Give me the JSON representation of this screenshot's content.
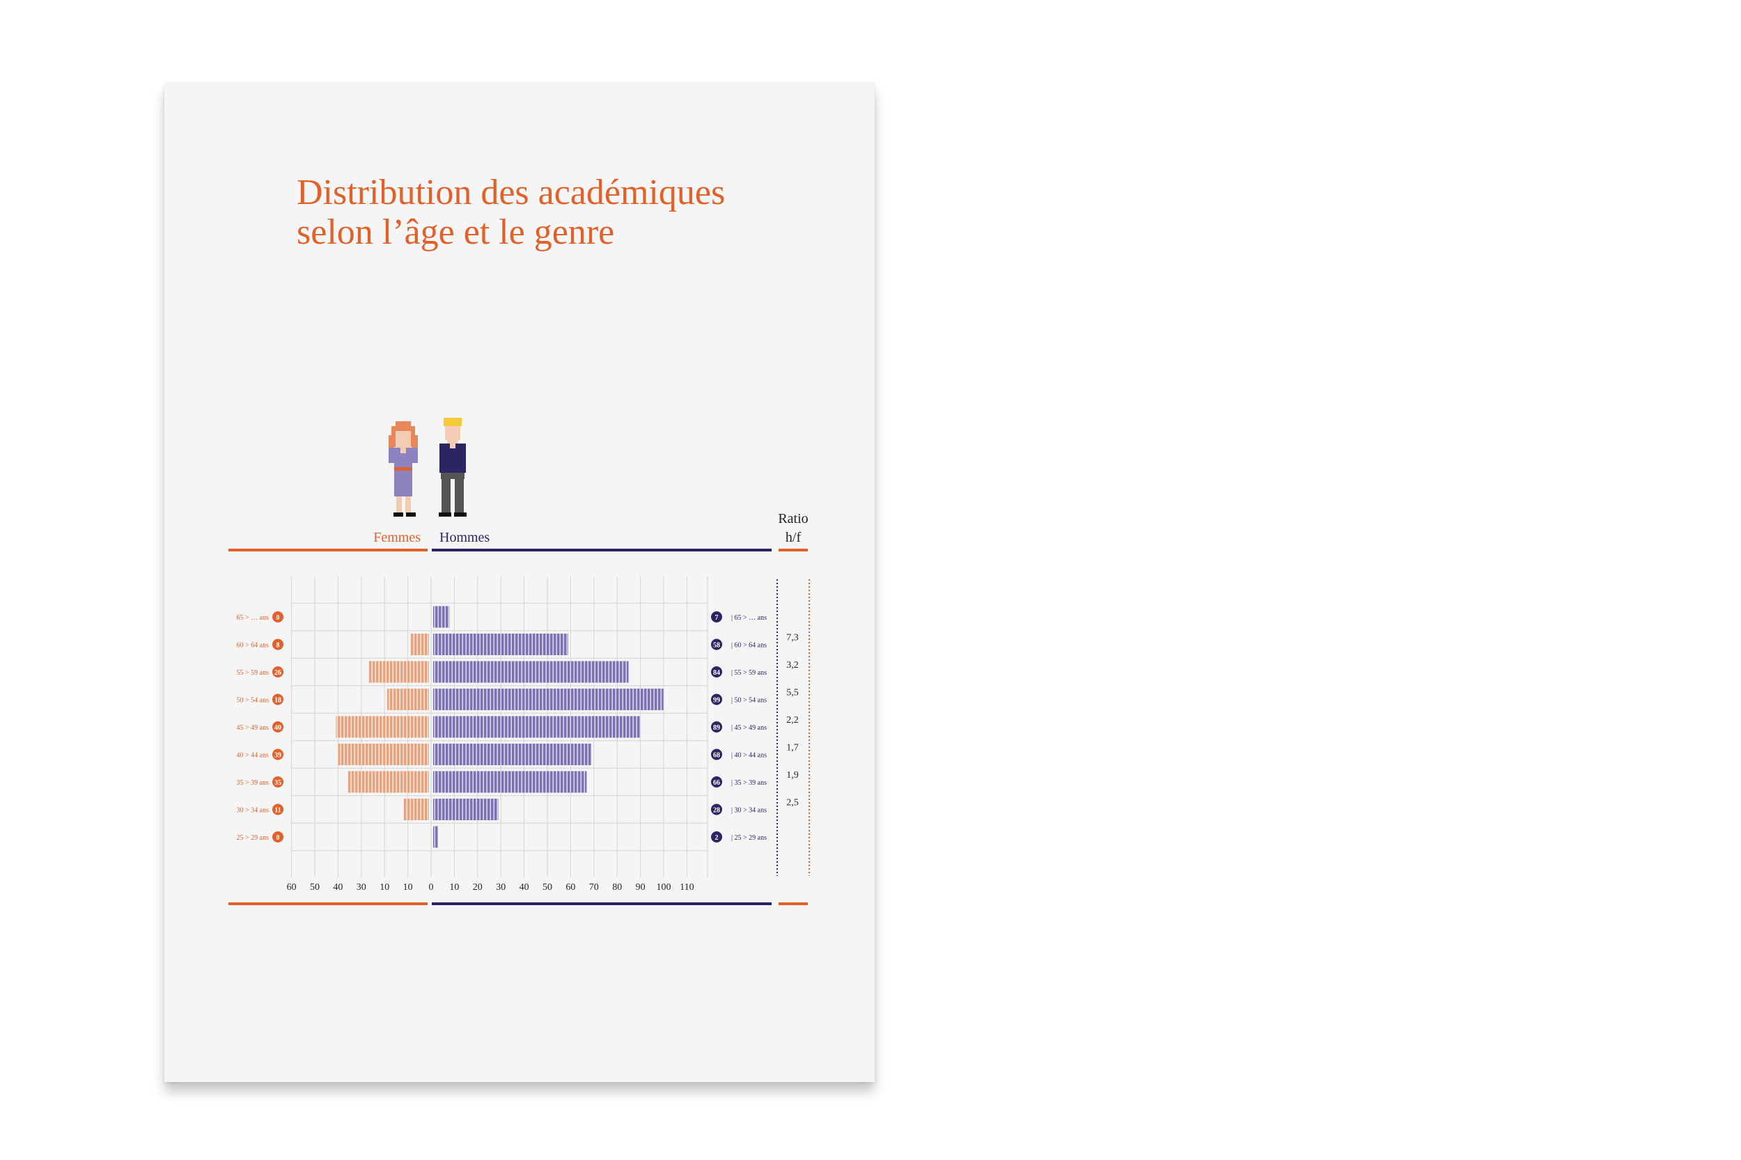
{
  "title_lines": [
    "Distribution des académiques",
    "selon l’âge et le genre"
  ],
  "colors": {
    "women": "#e0622a",
    "women_bar": "#e7a37d",
    "men": "#2c2563",
    "men_bar": "#7d72b5",
    "grid": "#d4d4d4",
    "text": "#222222"
  },
  "chart_data": {
    "type": "bar",
    "orientation": "horizontal-butterfly",
    "categories": [
      "65 > … ans",
      "60 > 64 ans",
      "55 > 59 ans",
      "50 > 54 ans",
      "45 > 49 ans",
      "40 > 44 ans",
      "35 > 39 ans",
      "30 > 34 ans",
      "25 > 29 ans"
    ],
    "series": [
      {
        "name": "Femmes",
        "values": [
          0,
          8,
          26,
          18,
          40,
          39,
          35,
          11,
          0
        ],
        "value_labels": [
          "0",
          "8",
          "26",
          "18",
          "40",
          "39",
          "35",
          "11",
          "0"
        ]
      },
      {
        "name": "Hommes",
        "values": [
          7,
          58,
          84,
          99,
          89,
          68,
          66,
          28,
          2
        ],
        "value_labels": [
          "7",
          "58",
          "84",
          "99",
          "89",
          "68",
          "66",
          "28",
          "2"
        ]
      }
    ],
    "ratio_header": [
      "Ratio",
      "h/f"
    ],
    "ratio_values": [
      "",
      "7,3",
      "3,2",
      "5,5",
      "2,2",
      "1,7",
      "1,9",
      "2,5",
      ""
    ],
    "axis_ticks_left": [
      "60",
      "50",
      "40",
      "30",
      "10",
      "10"
    ],
    "axis_ticks_right": [
      "0",
      "10",
      "20",
      "30",
      "40",
      "50",
      "60",
      "70",
      "80",
      "90",
      "100",
      "110"
    ],
    "xlim_left": [
      0,
      60
    ],
    "xlim_right": [
      0,
      110
    ],
    "grid": true,
    "legend": "top"
  }
}
